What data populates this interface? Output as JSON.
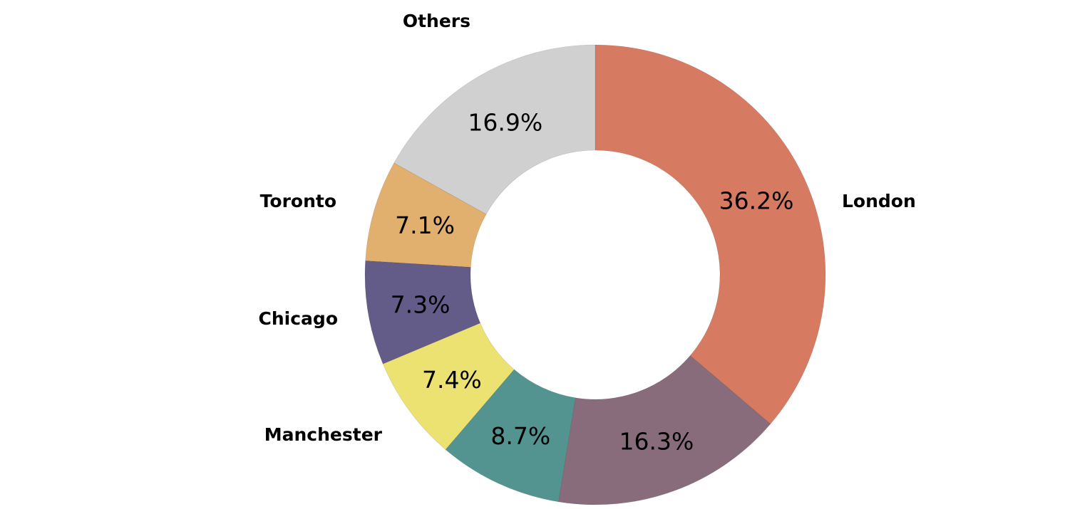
{
  "chart_data": {
    "type": "pie",
    "variant": "donut",
    "title": "",
    "start": "top",
    "direction": "clockwise",
    "slices": [
      {
        "label": "London",
        "value": 36.2,
        "display": "36.2%",
        "color": "#d67a61"
      },
      {
        "label": "",
        "value": 16.3,
        "display": "16.3%",
        "color": "#886c7b"
      },
      {
        "label": "",
        "value": 8.7,
        "display": "8.7%",
        "color": "#549490"
      },
      {
        "label": "Manchester",
        "value": 7.4,
        "display": "7.4%",
        "color": "#ebe271"
      },
      {
        "label": "Chicago",
        "value": 7.3,
        "display": "7.3%",
        "color": "#635b88"
      },
      {
        "label": "Toronto",
        "value": 7.1,
        "display": "7.1%",
        "color": "#e2b06e"
      },
      {
        "label": "Others",
        "value": 16.9,
        "display": "16.9%",
        "color": "#d0d0d0"
      }
    ]
  }
}
